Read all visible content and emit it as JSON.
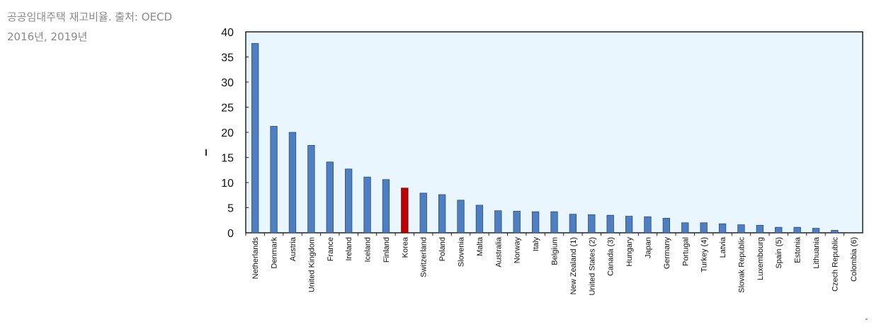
{
  "caption": "공공임대주택 재고비율. 출처: OECD 2016년, 2019년",
  "chart_data": {
    "type": "bar",
    "categories": [
      "Netherlands",
      "Denmark",
      "Austria",
      "United Kingdom",
      "France",
      "Ireland",
      "Iceland",
      "Finland",
      "Korea",
      "Switzerland",
      "Poland",
      "Slovenia",
      "Malta",
      "Australia",
      "Norway",
      "Italy",
      "Belgium",
      "New Zealand (1)",
      "United States (2)",
      "Canada (3)",
      "Hungary",
      "Japan",
      "Germany",
      "Portugal",
      "Turkey (4)",
      "Latvia",
      "Slovak Republic",
      "Luxembourg",
      "Spain (5)",
      "Estonia",
      "Lithuania",
      "Czech Republic",
      "Colombia (6)"
    ],
    "values": [
      37.7,
      21.2,
      20.0,
      17.4,
      14.1,
      12.7,
      11.1,
      10.6,
      8.9,
      7.9,
      7.6,
      6.5,
      5.5,
      4.4,
      4.3,
      4.2,
      4.2,
      3.7,
      3.6,
      3.5,
      3.3,
      3.2,
      2.9,
      2.0,
      2.0,
      1.8,
      1.6,
      1.5,
      1.1,
      1.1,
      0.9,
      0.5,
      0.0
    ],
    "highlight": "Korea",
    "ylim": [
      0,
      40
    ],
    "yticks": [
      0,
      5,
      10,
      15,
      20,
      25,
      30,
      35,
      40
    ],
    "grid": false,
    "colors": {
      "bar": "#4f7fc0",
      "bar_edge": "#2a4a80",
      "highlight": "#c00000",
      "highlight_edge": "#6a0000",
      "plot_background": "#eaf6fd",
      "frame": "#222222"
    }
  }
}
